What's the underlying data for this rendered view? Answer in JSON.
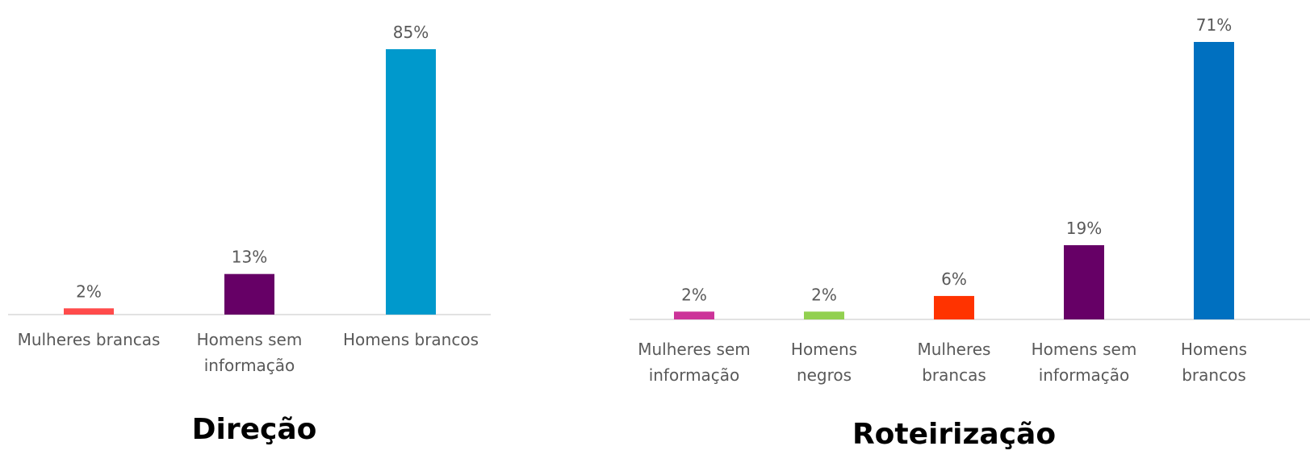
{
  "chart_data": [
    {
      "type": "bar",
      "title": "Direção",
      "categories": [
        [
          "Mulheres brancas"
        ],
        [
          "Homens sem",
          "informação"
        ],
        [
          "Homens brancos"
        ]
      ],
      "values": [
        2,
        13,
        85
      ],
      "value_labels": [
        "2%",
        "13%",
        "85%"
      ],
      "colors": [
        "#ff4b4b",
        "#660066",
        "#0099cc"
      ],
      "xlabel": "",
      "ylabel": "",
      "ylim": [
        0,
        85
      ],
      "grid": false
    },
    {
      "type": "bar",
      "title": "Roteirização",
      "categories": [
        [
          "Mulheres sem",
          "informação"
        ],
        [
          "Homens",
          "negros"
        ],
        [
          "Mulheres",
          "brancas"
        ],
        [
          "Homens sem",
          "informação"
        ],
        [
          "Homens",
          "brancos"
        ]
      ],
      "values": [
        2,
        2,
        6,
        19,
        71
      ],
      "value_labels": [
        "2%",
        "2%",
        "6%",
        "19%",
        "71%"
      ],
      "colors": [
        "#cc3399",
        "#92d050",
        "#ff3300",
        "#660066",
        "#0070c0"
      ],
      "xlabel": "",
      "ylabel": "",
      "ylim": [
        0,
        71
      ],
      "grid": false
    }
  ]
}
